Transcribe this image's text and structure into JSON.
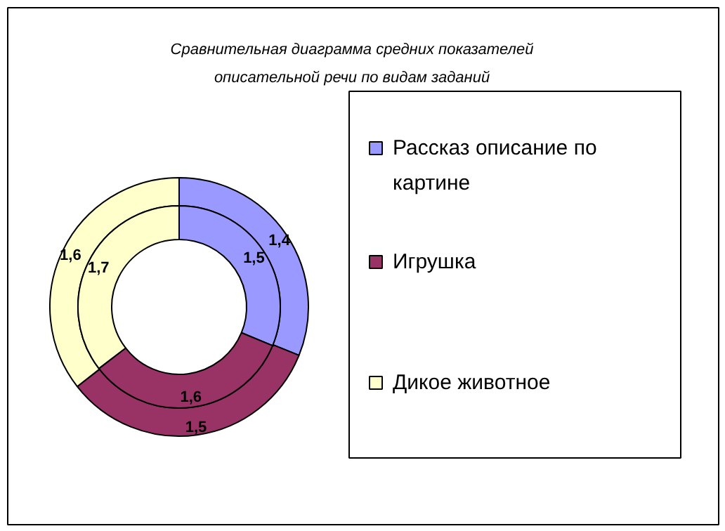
{
  "chart_data": {
    "type": "donut",
    "title": "Сравнительная диаграмма средних показателей описательной речи по видам заданий",
    "categories": [
      "Рассказ описание по картине",
      "Игрушка",
      "Дикое животное"
    ],
    "colors": [
      "#9999ff",
      "#993366",
      "#ffffcc"
    ],
    "series": [
      {
        "values": [
          1.4,
          1.5,
          1.6
        ],
        "value_labels": [
          "1,4",
          "1,5",
          "1,6"
        ]
      },
      {
        "values": [
          1.5,
          1.6,
          1.7
        ],
        "value_labels": [
          "1,5",
          "1,6",
          "1,7"
        ]
      }
    ],
    "legend": "right"
  }
}
